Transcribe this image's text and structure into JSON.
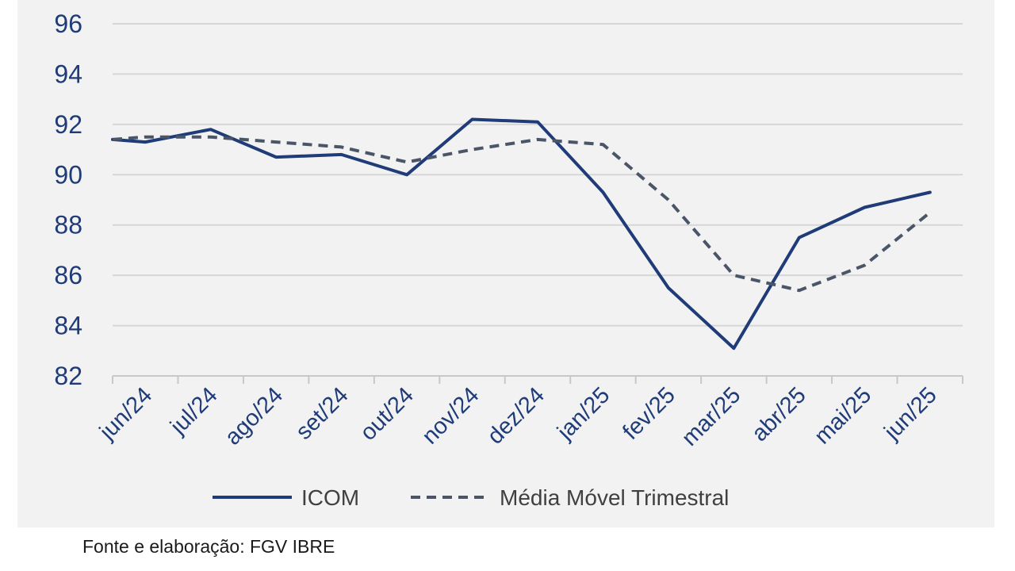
{
  "chart_data": {
    "type": "line",
    "title": "",
    "xlabel": "",
    "ylabel": "",
    "categories": [
      "jun/24",
      "jul/24",
      "ago/24",
      "set/24",
      "out/24",
      "nov/24",
      "dez/24",
      "jan/25",
      "fev/25",
      "mar/25",
      "abr/25",
      "mai/25",
      "jun/25"
    ],
    "ylim": [
      82,
      96
    ],
    "yticks": [
      82,
      84,
      86,
      88,
      90,
      92,
      94,
      96
    ],
    "grid": true,
    "legend_position": "bottom",
    "series": [
      {
        "name": "ICOM",
        "color": "#1f3b78",
        "style": "solid",
        "x": [
          0,
          0.5,
          1.5,
          2.5,
          3.5,
          4.5,
          5.5,
          6.5,
          7.5,
          8.5,
          9.5,
          10.5,
          11.5,
          12.5
        ],
        "values": [
          91.4,
          91.3,
          91.8,
          90.7,
          90.8,
          90.0,
          92.2,
          92.1,
          89.3,
          85.5,
          83.1,
          87.5,
          88.7,
          89.3
        ]
      },
      {
        "name": "Média Móvel Trimestral",
        "color": "#4a5568",
        "style": "dashed",
        "x": [
          0,
          0.5,
          1.5,
          2.5,
          3.5,
          4.5,
          5.5,
          6.5,
          7.5,
          8.5,
          9.5,
          10.5,
          11.5,
          12.5
        ],
        "values": [
          91.4,
          91.5,
          91.5,
          91.3,
          91.1,
          90.5,
          91.0,
          91.4,
          91.2,
          89.0,
          86.0,
          85.4,
          86.4,
          88.5
        ]
      }
    ]
  },
  "footer": {
    "source": "Fonte e elaboração: FGV IBRE"
  }
}
